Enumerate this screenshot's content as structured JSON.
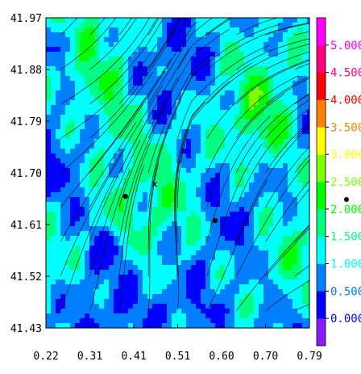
{
  "chart_data": {
    "type": "heatmap",
    "description_note": "",
    "x_ticks": [
      "0.22",
      "0.31",
      "0.41",
      "0.51",
      "0.60",
      "0.70",
      "0.79"
    ],
    "y_ticks": [
      "41.97",
      "41.88",
      "41.79",
      "41.70",
      "41.61",
      "41.52",
      "41.43"
    ],
    "xlim": [
      0.22,
      0.79
    ],
    "ylim": [
      41.43,
      41.97
    ],
    "colorbar": {
      "levels": [
        {
          "label": "",
          "color": "#8c1aff"
        },
        {
          "label": "0.000",
          "color": "#0000ff"
        },
        {
          "label": "0.500",
          "color": "#0080ff"
        },
        {
          "label": "1.000",
          "color": "#00ffff"
        },
        {
          "label": "1.500",
          "color": "#00ff80"
        },
        {
          "label": "2.000",
          "color": "#00ff00"
        },
        {
          "label": "2.500",
          "color": "#80ff00"
        },
        {
          "label": "3.000",
          "color": "#ffff00"
        },
        {
          "label": "3.500",
          "color": "#ff8000"
        },
        {
          "label": "4.000",
          "color": "#ff0000"
        },
        {
          "label": "4.500",
          "color": "#ff0080"
        },
        {
          "label": "5.000",
          "color": "#ff00ff"
        }
      ]
    },
    "points": [
      {
        "x": 0.392,
        "y": 41.659,
        "marker": "dot"
      },
      {
        "x": 0.586,
        "y": 41.617,
        "marker": "dot"
      },
      {
        "x": 0.455,
        "y": 41.68,
        "marker": "x"
      }
    ]
  }
}
